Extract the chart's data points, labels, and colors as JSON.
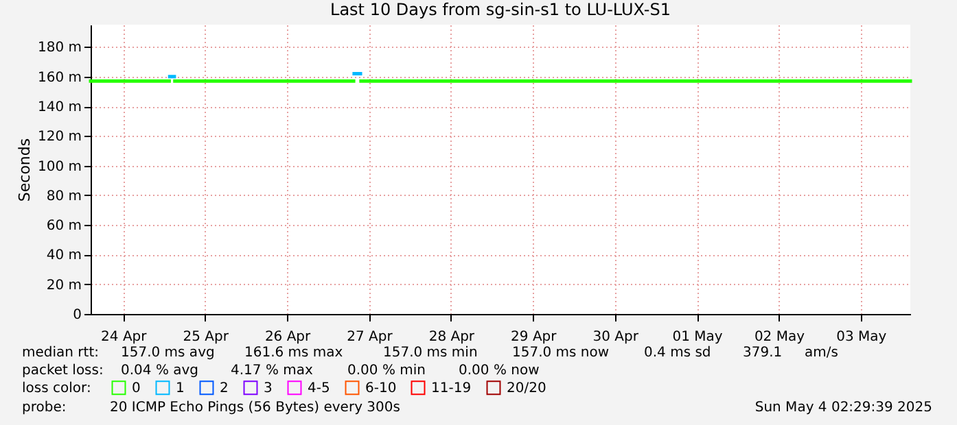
{
  "chart_data": {
    "type": "line",
    "title": "Last 10 Days from sg-sin-s1 to LU-LUX-S1",
    "ylabel": "Seconds",
    "x": [
      "2025-04-24T02:30",
      "2025-04-25T01:30",
      "2025-04-25T01:40",
      "2025-04-25T03:00",
      "2025-04-25T03:10",
      "2025-04-27T07:30",
      "2025-04-27T07:40",
      "2025-04-27T09:30",
      "2025-04-27T09:40",
      "2025-05-04T02:30"
    ],
    "series": [
      {
        "name": "0",
        "color": "#26ff00",
        "values": [
          157,
          157,
          null,
          null,
          157,
          157,
          null,
          null,
          157,
          157
        ]
      },
      {
        "name": "1",
        "color": "#00b8ff",
        "values": [
          null,
          null,
          160,
          160,
          null,
          null,
          162,
          162,
          null,
          null
        ]
      },
      {
        "name": "2",
        "color": "#0059ff",
        "values": [
          null,
          null,
          null,
          null,
          null,
          null,
          null,
          null,
          null,
          null
        ]
      },
      {
        "name": "3",
        "color": "#7e00ff",
        "values": [
          null,
          null,
          null,
          null,
          null,
          null,
          null,
          null,
          null,
          null
        ]
      },
      {
        "name": "4-5",
        "color": "#ff00ff",
        "values": [
          null,
          null,
          null,
          null,
          null,
          null,
          null,
          null,
          null,
          null
        ]
      },
      {
        "name": "6-10",
        "color": "#ff5500",
        "values": [
          null,
          null,
          null,
          null,
          null,
          null,
          null,
          null,
          null,
          null
        ]
      },
      {
        "name": "11-19",
        "color": "#ff0000",
        "values": [
          null,
          null,
          null,
          null,
          null,
          null,
          null,
          null,
          null,
          null
        ]
      },
      {
        "name": "20/20",
        "color": "#a10000",
        "values": [
          null,
          null,
          null,
          null,
          null,
          null,
          null,
          null,
          null,
          null
        ]
      }
    ],
    "legend_title": "loss color:",
    "legend": "bottom",
    "grid": true,
    "marker": "none",
    "line_style": "solid",
    "xlim": [
      "2025-04-24T02:30",
      "2025-05-04T02:30"
    ],
    "xticks": [
      {
        "value": "2025-04-24T12:00",
        "label": "24 Apr"
      },
      {
        "value": "2025-04-25T12:00",
        "label": "25 Apr"
      },
      {
        "value": "2025-04-26T12:00",
        "label": "26 Apr"
      },
      {
        "value": "2025-04-27T12:00",
        "label": "27 Apr"
      },
      {
        "value": "2025-04-28T12:00",
        "label": "28 Apr"
      },
      {
        "value": "2025-04-29T12:00",
        "label": "29 Apr"
      },
      {
        "value": "2025-04-30T12:00",
        "label": "30 Apr"
      },
      {
        "value": "2025-05-01T12:00",
        "label": "01 May"
      },
      {
        "value": "2025-05-02T12:00",
        "label": "02 May"
      },
      {
        "value": "2025-05-03T12:00",
        "label": "03 May"
      }
    ],
    "ylim": [
      0,
      195
    ],
    "yticks": [
      0,
      {
        "value": 20,
        "label": "20 m"
      },
      {
        "value": 40,
        "label": "40 m"
      },
      {
        "value": 60,
        "label": "60 m"
      },
      {
        "value": 80,
        "label": "80 m"
      },
      {
        "value": 100,
        "label": "100 m"
      },
      {
        "value": 120,
        "label": "120 m"
      },
      {
        "value": 140,
        "label": "140 m"
      },
      {
        "value": 160,
        "label": "160 m"
      },
      {
        "value": 180,
        "label": "180 m"
      }
    ],
    "annotations": [
      "median rtt:",
      "157.0 ms avg",
      "161.6 ms max",
      "157.0 ms min",
      "157.0 ms now",
      "0.4 ms sd",
      "379.1",
      "am/s",
      "packet loss:",
      "0.04 % avg",
      "4.17 % max",
      "0.00 % min",
      "0.00 % now",
      "probe:",
      "20 ICMP Echo Pings (56 Bytes) every 300s",
      "Sun May  4 02:29:39 2025"
    ]
  }
}
